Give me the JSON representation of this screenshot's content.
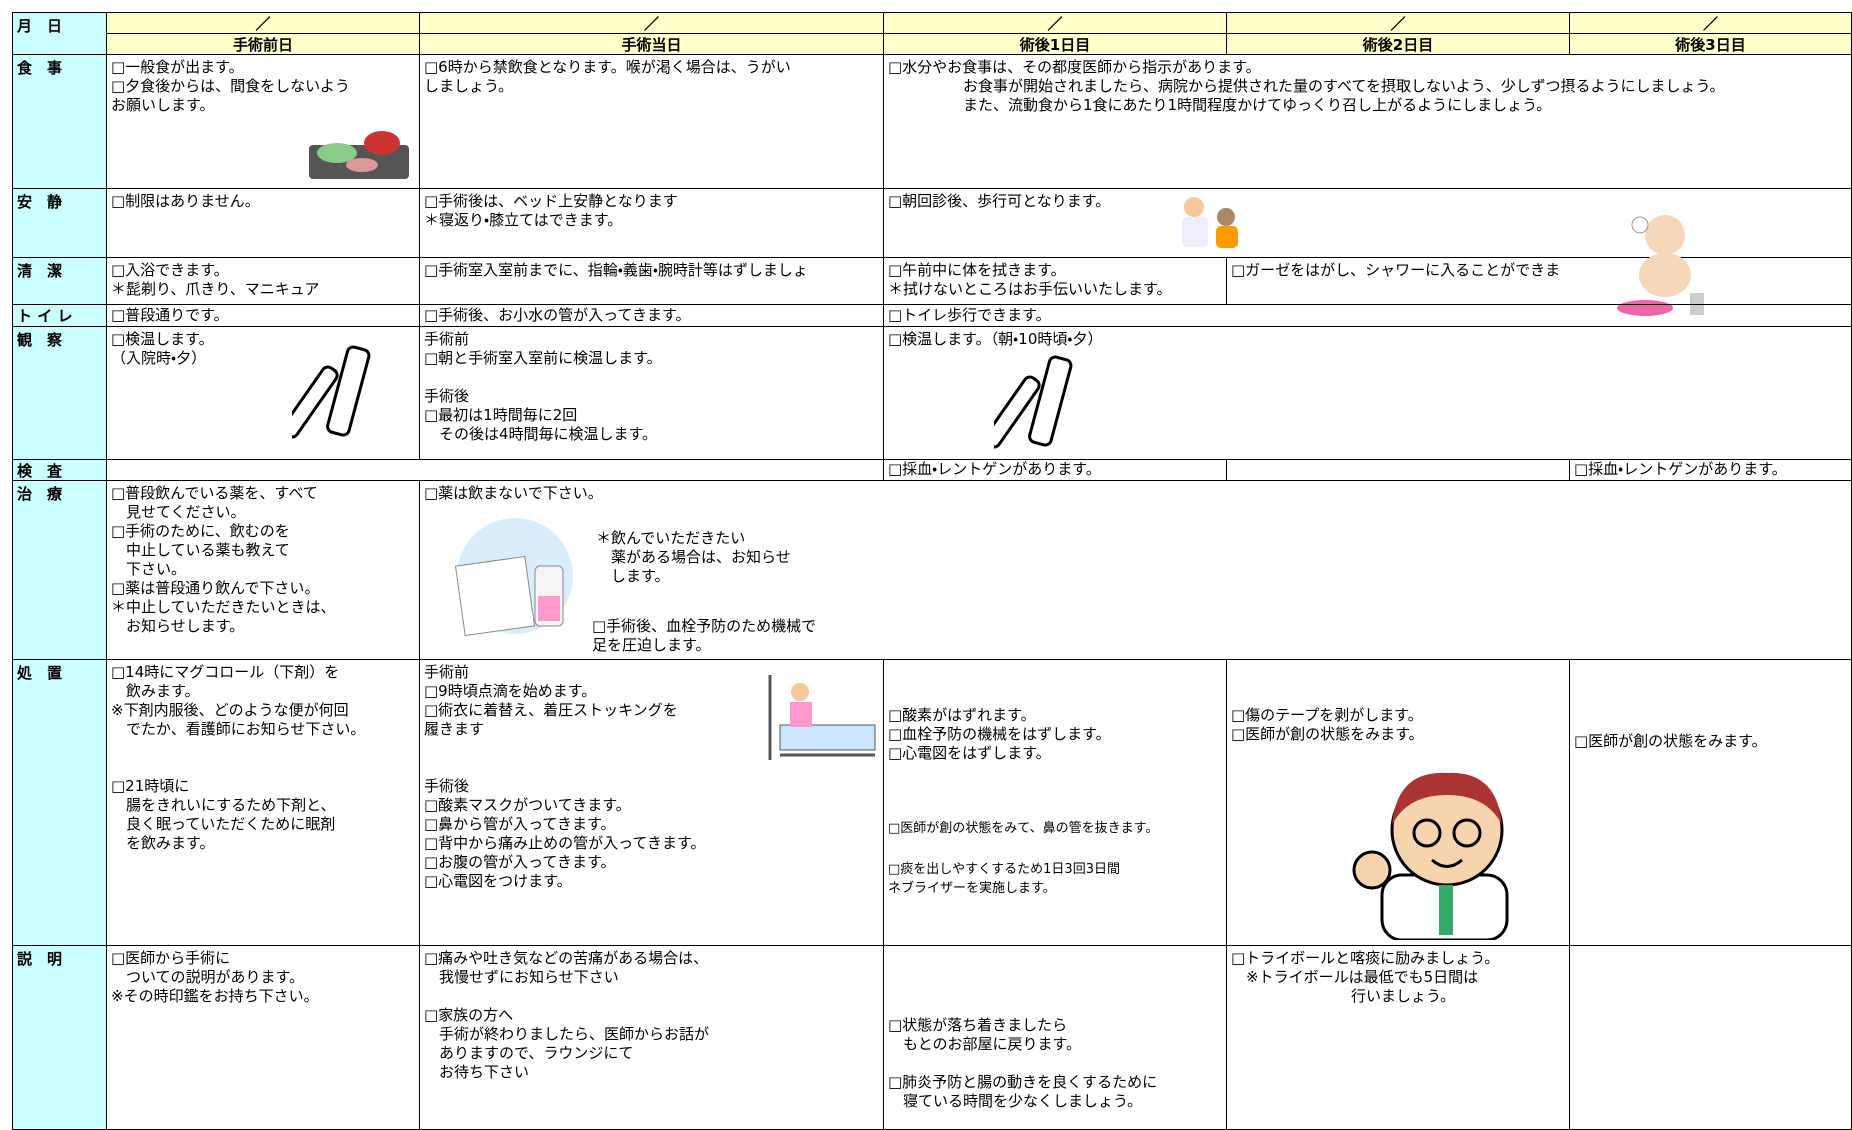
{
  "header": {
    "month_day": "月　日",
    "dates": [
      "／",
      "／",
      "／",
      "／",
      "／"
    ],
    "columns": [
      "手術前日",
      "手術当日",
      "術後1日目",
      "術後2日目",
      "術後3日目"
    ]
  },
  "rows": [
    {
      "label": "食　事",
      "cells": [
        "□一般食が出ます。\n□夕食後からは、間食をしないよう\nお願いします。",
        "□6時から禁飲食となります。喉が渇く場合は、うがい\nしましょう。",
        "□水分やお食事は、その都度医師から指示があります。\n　　　　　お食事が開始されましたら、病院から提供された量のすべてを摂取しないよう、少しずつ摂るようにしましょう。\n　　　　　また、流動食から1食にあたり1時間程度かけてゆっくり召し上がるようにしましょう。"
      ]
    },
    {
      "label": "安　静",
      "cells": [
        "□制限はありません。",
        "□手術後は、ベッド上安静となります\n＊寝返り・膝立てはできます。",
        "□朝回診後、歩行可となります。"
      ]
    },
    {
      "label": "清　潔",
      "cells": [
        "□入浴できます。\n＊髭剃り、爪きり、マニキュア",
        "□手術室入室前までに、指輪・義歯・腕時計等はずしましょ",
        "□午前中に体を拭きます。\n＊拭けないところはお手伝いいたします。",
        "□ガーゼをはがし、シャワーに入ることができま"
      ]
    },
    {
      "label": "ト イ レ",
      "cells": [
        "□普段通りです。",
        "□手術後、お小水の管が入ってきます。",
        "□トイレ歩行できます。"
      ]
    },
    {
      "label": "観　察",
      "cells": [
        "□検温します。\n（入院時・夕）",
        "手術前\n□朝と手術室入室前に検温します。\n\n手術後\n□最初は1時間毎に2回\n　その後は4時間毎に検温します。",
        "□検温します。（朝・10時頃・夕）"
      ]
    },
    {
      "label": "検　査",
      "cells": [
        "□採血・レントゲンがあります。",
        "□採血・レントゲンがあります。"
      ]
    },
    {
      "label": "治　療",
      "cells": [
        "□普段飲んでいる薬を、すべて\n　見せてください。\n□手術のために、飲むのを\n　中止している薬も教えて\n　下さい。\n□薬は普段通り飲んで下さい。\n＊中止していただきたいときは、\n　お知らせします。",
        "□薬は飲まないで下さい。",
        "＊飲んでいただきたい\n　薬がある場合は、お知らせ\n　します。",
        "□手術後、血栓予防のため機械で\n足を圧迫します。"
      ]
    },
    {
      "label": "処　置",
      "cells": [
        "□14時にマグコロール（下剤）を\n　飲みます。\n※下剤内服後、どのような便が何回\n　でたか、看護師にお知らせ下さい。\n\n\n□21時頃に\n　腸をきれいにするため下剤と、\n　良く眠っていただくために眠剤\n　を飲みます。",
        "手術前\n□9時頃点滴を始めます。\n□術衣に着替え、着圧ストッキングを\n履きます\n\n\n手術後\n□酸素マスクがついてきます。\n□鼻から管が入ってきます。\n□背中から痛み止めの管が入ってきます。\n□お腹の管が入ってきます。\n□心電図をつけます。",
        "□酸素がはずれます。\n□血栓予防の機械をはずします。\n□心電図をはずします。",
        "□医師が創の状態をみて、鼻の管を抜きます。",
        "□痰を出しやすくするため1日3回3日間\nネブライザーを実施します。",
        "□傷のテープを剥がします。\n□医師が創の状態をみます。",
        "□医師が創の状態をみます。"
      ]
    },
    {
      "label": "説　明",
      "cells": [
        "□医師から手術に\n　ついての説明があります。\n※その時印鑑をお持ち下さい。",
        "□痛みや吐き気などの苦痛がある場合は、\n　我慢せずにお知らせ下さい\n\n□家族の方へ\n　手術が終わりましたら、医師からお話が\n　ありますので、ラウンジにて\n　お待ち下さい",
        "□状態が落ち着きましたら\n　もとのお部屋に戻ります。\n\n□肺炎予防と腸の動きを良くするために\n　寝ている時間を少なくしましょう。",
        "□トライボールと喀痰に励みましょう。\n　※トライボールは最低でも5日間は\n　　　　　　　　行いましょう。"
      ]
    }
  ]
}
